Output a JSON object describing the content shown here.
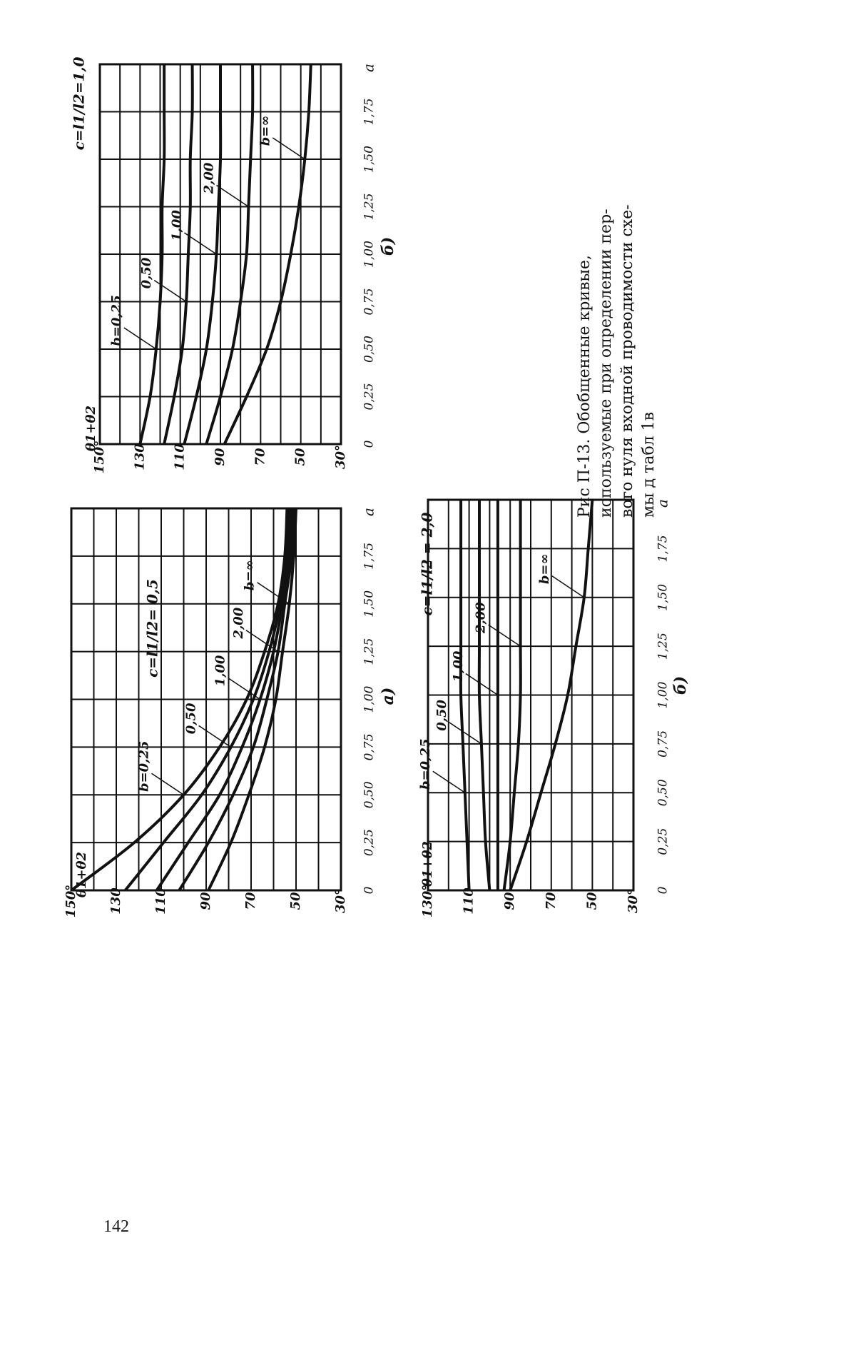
{
  "page": {
    "number": "142"
  },
  "caption": {
    "lines": [
      "Рис    П-13.    Обобщенные    кривые,",
      "используемые  при  определении  пер-",
      "вого нуля входной проводимости схе-",
      "мы д табл 1в"
    ]
  },
  "chart_data": [
    {
      "id": "a",
      "type": "line",
      "panel_label": "а)",
      "c_label": "c=l1/l2= 0,5",
      "ylabel": "θ1+θ2",
      "xlabel": "a",
      "xlim": [
        0,
        2.0
      ],
      "ylim": [
        30,
        150
      ],
      "xticks": [
        0,
        0.25,
        0.5,
        0.75,
        1.0,
        1.25,
        1.5,
        1.75
      ],
      "xtick_labels": [
        "0",
        "0,25",
        "0,50",
        "0,75",
        "1,00",
        "1,25",
        "1,50",
        "1,75"
      ],
      "yticks": [
        30,
        50,
        70,
        90,
        110,
        130,
        150
      ],
      "ytick_labels": [
        "30°",
        "50",
        "70",
        "90",
        "110",
        "130",
        "150°"
      ],
      "grid": true,
      "x": [
        0,
        0.25,
        0.5,
        0.75,
        1.0,
        1.25,
        1.5,
        1.75,
        2.0
      ],
      "series": [
        {
          "name": "b=0,25",
          "values": [
            150,
            122,
            100,
            84,
            72,
            64,
            58,
            55,
            54
          ]
        },
        {
          "name": "0,50",
          "values": [
            126,
            109,
            92,
            79,
            69,
            62,
            57,
            54,
            53
          ]
        },
        {
          "name": "1,00",
          "values": [
            112,
            98,
            84,
            74,
            66,
            60,
            56,
            53,
            52
          ]
        },
        {
          "name": "2,00",
          "values": [
            102,
            89,
            78,
            69,
            63,
            58,
            55,
            52,
            51
          ]
        },
        {
          "name": "b=∞",
          "values": [
            89,
            79,
            71,
            64,
            59,
            56,
            53,
            51,
            50
          ]
        }
      ]
    },
    {
      "id": "b",
      "type": "line",
      "panel_label": "б)",
      "c_label": "c=l1/l2=1,0",
      "ylabel": "θ1+θ2",
      "xlabel": "a",
      "xlim": [
        0,
        2.0
      ],
      "ylim": [
        30,
        150
      ],
      "xticks": [
        0,
        0.25,
        0.5,
        0.75,
        1.0,
        1.25,
        1.5,
        1.75
      ],
      "xtick_labels": [
        "0",
        "0,25",
        "0,50",
        "0,75",
        "1,00",
        "1,25",
        "1,50",
        "1,75"
      ],
      "yticks": [
        30,
        50,
        70,
        90,
        110,
        130,
        150
      ],
      "ytick_labels": [
        "30°",
        "50",
        "70",
        "90",
        "110",
        "130",
        "150°"
      ],
      "grid": true,
      "x": [
        0,
        0.25,
        0.5,
        0.75,
        1.0,
        1.25,
        1.5,
        1.75,
        2.0
      ],
      "series": [
        {
          "name": "b=0,25",
          "values": [
            130,
            125,
            122,
            120,
            119,
            119,
            118,
            118,
            118
          ]
        },
        {
          "name": "0,50",
          "values": [
            118,
            113,
            109,
            107,
            106,
            105,
            105,
            104,
            104
          ]
        },
        {
          "name": "1,00",
          "values": [
            108,
            102,
            97,
            94,
            92,
            91,
            90,
            90,
            90
          ]
        },
        {
          "name": "2,00",
          "values": [
            97,
            90,
            84,
            80,
            77,
            76,
            75,
            74,
            74
          ]
        },
        {
          "name": "b=∞",
          "values": [
            88,
            77,
            67,
            60,
            55,
            51,
            48,
            46,
            45
          ]
        }
      ]
    },
    {
      "id": "v",
      "type": "line",
      "panel_label": "б)",
      "c_label": "c=l1/l2 = 2,0",
      "ylabel": "θ1+θ2",
      "xlabel": "a",
      "xlim": [
        0,
        2.0
      ],
      "ylim": [
        30,
        130
      ],
      "xticks": [
        0,
        0.25,
        0.5,
        0.75,
        1.0,
        1.25,
        1.5,
        1.75
      ],
      "xtick_labels": [
        "0",
        "0,25",
        "0,50",
        "0,75",
        "1,00",
        "1,25",
        "1,50",
        "1,75"
      ],
      "yticks": [
        30,
        50,
        70,
        90,
        110,
        130
      ],
      "ytick_labels": [
        "30°",
        "50",
        "70",
        "90",
        "110",
        "130°"
      ],
      "grid": true,
      "x": [
        0,
        0.25,
        0.5,
        0.75,
        1.0,
        1.25,
        1.5,
        1.75,
        2.0
      ],
      "series": [
        {
          "name": "b=0,25",
          "values": [
            110,
            111,
            112,
            113,
            114,
            114,
            114,
            114,
            114
          ]
        },
        {
          "name": "0,50",
          "values": [
            100,
            102,
            103,
            104,
            105,
            105,
            105,
            105,
            105
          ]
        },
        {
          "name": "1,00",
          "values": [
            96,
            96,
            96,
            96,
            96,
            96,
            96,
            96,
            96
          ]
        },
        {
          "name": "2,00",
          "values": [
            93,
            90,
            88,
            86,
            85,
            85,
            85,
            85,
            85
          ]
        },
        {
          "name": "b=∞",
          "values": [
            90,
            82,
            75,
            68,
            62,
            58,
            54,
            52,
            50
          ]
        }
      ]
    }
  ]
}
